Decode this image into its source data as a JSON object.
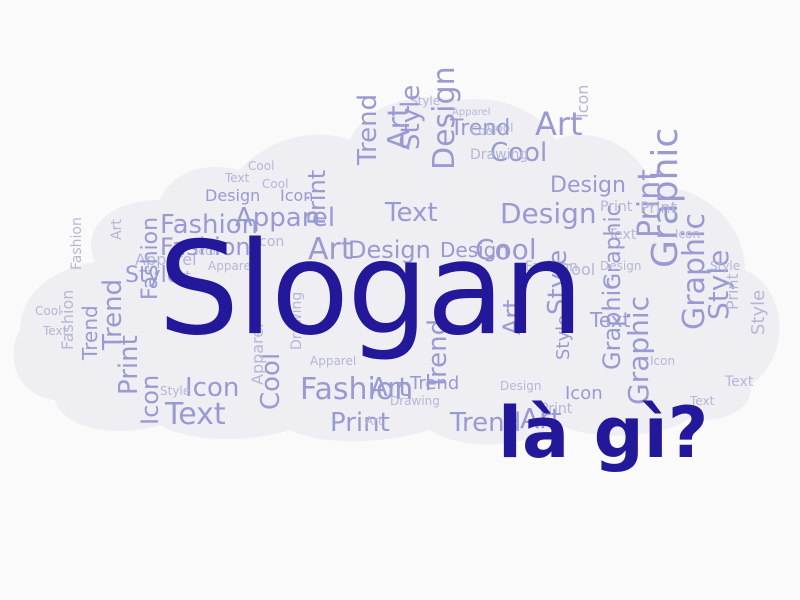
{
  "colors": {
    "background": "#fafafa",
    "cloud": "#eeeef3",
    "word_light": "#b6b6d6",
    "word_mid": "#9a9ad2",
    "word_dark": "#7272b8",
    "headline": "#24189a"
  },
  "headline": {
    "title": "Slogan",
    "subtitle": "là gì?"
  },
  "word_cloud": {
    "words": [
      "Style",
      "Apparel",
      "Cool",
      "Trend",
      "Art",
      "Cool",
      "Art",
      "Design",
      "Icon",
      "Drawing",
      "Text",
      "Design",
      "Cool",
      "Trend",
      "Style",
      "Print",
      "Fashion",
      "Apparel",
      "Icon",
      "Text",
      "Design",
      "Graphic",
      "Art",
      "Cool",
      "Icon",
      "Apparel",
      "Print",
      "Text",
      "Design",
      "Print",
      "Fashion",
      "Art",
      "Style",
      "Art",
      "Design",
      "Cool",
      "Graphic",
      "Text",
      "Icon",
      "Trend",
      "Style",
      "Graphic",
      "Print",
      "Trend",
      "Fashion",
      "Print",
      "Icon",
      "Style",
      "Apparel",
      "Cool",
      "Fashion",
      "Icon",
      "Art",
      "Drawing",
      "Text",
      "Design",
      "Art",
      "Print",
      "Style",
      "Trend",
      "Icon",
      "Style",
      "Text",
      "Cool",
      "Fashion",
      "Trend",
      "Art",
      "Graphic",
      "Style",
      "Print",
      "Icon",
      "Cool",
      "Drawing",
      "Apparel",
      "Design",
      "Text",
      "Fashion",
      "Art",
      "Cool",
      "Trend",
      "Print",
      "Icon",
      "Style",
      "Graphic",
      "Text",
      "Apparel",
      "Design",
      "Fashion"
    ]
  }
}
